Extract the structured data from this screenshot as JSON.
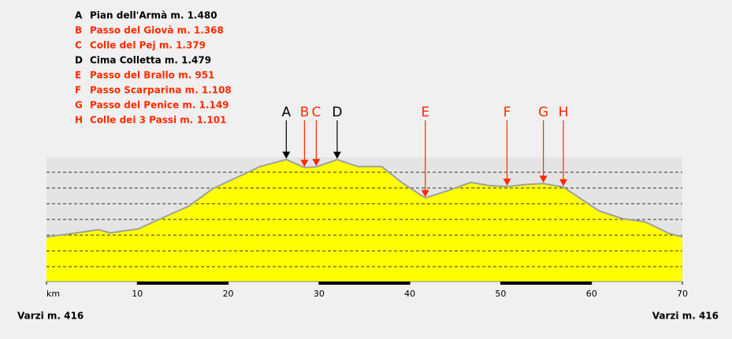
{
  "chart_data": {
    "type": "area",
    "x": [
      0,
      2.7,
      5.7,
      7.0,
      10.1,
      12.2,
      15.7,
      18.3,
      20.9,
      23.5,
      26.4,
      28.4,
      29.7,
      32.0,
      34.3,
      36.9,
      39.1,
      41.7,
      44.3,
      46.7,
      48.7,
      50.7,
      52.6,
      54.7,
      56.9,
      60.8,
      63.4,
      65.9,
      68.6,
      70
    ],
    "values": [
      416,
      459,
      514,
      470,
      525,
      644,
      840,
      1078,
      1230,
      1382,
      1480,
      1368,
      1379,
      1479,
      1382,
      1382,
      1165,
      951,
      1057,
      1165,
      1122,
      1108,
      1133,
      1149,
      1101,
      774,
      666,
      622,
      459,
      416
    ],
    "color": "#ffff00",
    "line_color": "#a0a0a0",
    "xlim": [
      0,
      70
    ],
    "ylim": [
      -200,
      1510
    ],
    "xticks": [
      {
        "value": 0,
        "label": "km"
      },
      10,
      20,
      30,
      40,
      50,
      60,
      70
    ],
    "grid": true,
    "markers": [
      {
        "letter": "A",
        "label": "Pian dell'Armà m. 1.480",
        "color": "#000000",
        "x": 26.4,
        "value": 1480
      },
      {
        "letter": "B",
        "label": "Passo del Giovà m. 1.368",
        "color": "#ff2a00",
        "x": 28.4,
        "value": 1368
      },
      {
        "letter": "C",
        "label": "Colle del Pej m. 1.379",
        "color": "#ff2a00",
        "x": 29.7,
        "value": 1379
      },
      {
        "letter": "D",
        "label": "Cima Colletta m. 1.479",
        "color": "#000000",
        "x": 32.0,
        "value": 1479
      },
      {
        "letter": "E",
        "label": "Passo del Brallo m. 951",
        "color": "#ff2a00",
        "x": 41.7,
        "value": 951
      },
      {
        "letter": "F",
        "label": "Passo Scarparina m. 1.108",
        "color": "#ff2a00",
        "x": 50.7,
        "value": 1108
      },
      {
        "letter": "G",
        "label": "Passo del Penice m. 1.149",
        "color": "#ff2a00",
        "x": 54.7,
        "value": 1149
      },
      {
        "letter": "H",
        "label": "Colle dei 3 Passi m. 1.101",
        "color": "#ff2a00",
        "x": 56.9,
        "value": 1101
      }
    ],
    "start_label": "Varzi m. 416",
    "end_label": "Varzi m. 416"
  }
}
